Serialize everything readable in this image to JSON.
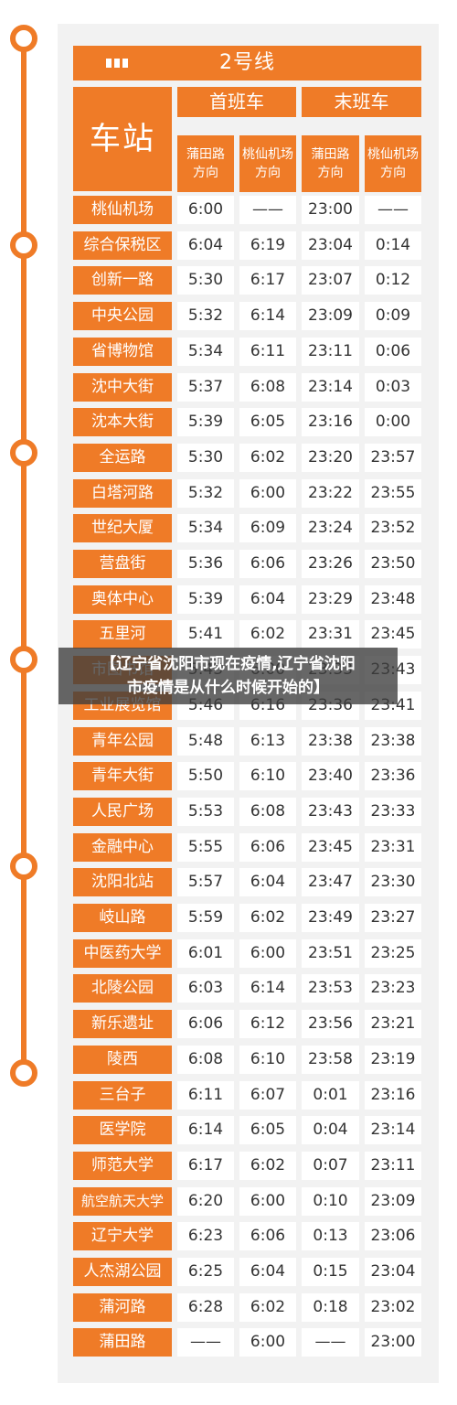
{
  "header": {
    "line_title": "2号线"
  },
  "table": {
    "station_label": "车站",
    "first_train_label": "首班车",
    "last_train_label": "末班车",
    "direction_1": [
      "蒲田路",
      "方向"
    ],
    "direction_2": [
      "桃仙机场",
      "方向"
    ],
    "direction_3": [
      "蒲田路",
      "方向"
    ],
    "direction_4": [
      "桃仙机场",
      "方向"
    ],
    "rows": [
      {
        "station": "桃仙机场",
        "first_putian": "6:00",
        "first_taoxian": "——",
        "last_putian": "23:00",
        "last_taoxian": "——"
      },
      {
        "station": "综合保税区",
        "first_putian": "6:04",
        "first_taoxian": "6:19",
        "last_putian": "23:04",
        "last_taoxian": "0:14"
      },
      {
        "station": "创新一路",
        "first_putian": "5:30",
        "first_taoxian": "6:17",
        "last_putian": "23:07",
        "last_taoxian": "0:12"
      },
      {
        "station": "中央公园",
        "first_putian": "5:32",
        "first_taoxian": "6:14",
        "last_putian": "23:09",
        "last_taoxian": "0:09"
      },
      {
        "station": "省博物馆",
        "first_putian": "5:34",
        "first_taoxian": "6:11",
        "last_putian": "23:11",
        "last_taoxian": "0:06"
      },
      {
        "station": "沈中大街",
        "first_putian": "5:37",
        "first_taoxian": "6:08",
        "last_putian": "23:14",
        "last_taoxian": "0:03"
      },
      {
        "station": "沈本大街",
        "first_putian": "5:39",
        "first_taoxian": "6:05",
        "last_putian": "23:16",
        "last_taoxian": "0:00"
      },
      {
        "station": "全运路",
        "first_putian": "5:30",
        "first_taoxian": "6:02",
        "last_putian": "23:20",
        "last_taoxian": "23:57"
      },
      {
        "station": "白塔河路",
        "first_putian": "5:32",
        "first_taoxian": "6:00",
        "last_putian": "23:22",
        "last_taoxian": "23:55"
      },
      {
        "station": "世纪大厦",
        "first_putian": "5:34",
        "first_taoxian": "6:09",
        "last_putian": "23:24",
        "last_taoxian": "23:52"
      },
      {
        "station": "营盘街",
        "first_putian": "5:36",
        "first_taoxian": "6:06",
        "last_putian": "23:26",
        "last_taoxian": "23:50"
      },
      {
        "station": "奥体中心",
        "first_putian": "5:39",
        "first_taoxian": "6:04",
        "last_putian": "23:29",
        "last_taoxian": "23:48"
      },
      {
        "station": "五里河",
        "first_putian": "5:41",
        "first_taoxian": "6:02",
        "last_putian": "23:31",
        "last_taoxian": "23:45"
      },
      {
        "station": "市图书馆",
        "first_putian": "5:43",
        "first_taoxian": "6:00",
        "last_putian": "23:33",
        "last_taoxian": "23:43"
      },
      {
        "station": "工业展览馆",
        "first_putian": "5:46",
        "first_taoxian": "6:16",
        "last_putian": "23:36",
        "last_taoxian": "23:41"
      },
      {
        "station": "青年公园",
        "first_putian": "5:48",
        "first_taoxian": "6:13",
        "last_putian": "23:38",
        "last_taoxian": "23:38"
      },
      {
        "station": "青年大街",
        "first_putian": "5:50",
        "first_taoxian": "6:10",
        "last_putian": "23:40",
        "last_taoxian": "23:36"
      },
      {
        "station": "人民广场",
        "first_putian": "5:53",
        "first_taoxian": "6:08",
        "last_putian": "23:43",
        "last_taoxian": "23:33"
      },
      {
        "station": "金融中心",
        "first_putian": "5:55",
        "first_taoxian": "6:06",
        "last_putian": "23:45",
        "last_taoxian": "23:31"
      },
      {
        "station": "沈阳北站",
        "first_putian": "5:57",
        "first_taoxian": "6:04",
        "last_putian": "23:47",
        "last_taoxian": "23:30"
      },
      {
        "station": "岐山路",
        "first_putian": "5:59",
        "first_taoxian": "6:02",
        "last_putian": "23:49",
        "last_taoxian": "23:27"
      },
      {
        "station": "中医药大学",
        "first_putian": "6:01",
        "first_taoxian": "6:00",
        "last_putian": "23:51",
        "last_taoxian": "23:25"
      },
      {
        "station": "北陵公园",
        "first_putian": "6:03",
        "first_taoxian": "6:14",
        "last_putian": "23:53",
        "last_taoxian": "23:23"
      },
      {
        "station": "新乐遗址",
        "first_putian": "6:06",
        "first_taoxian": "6:12",
        "last_putian": "23:56",
        "last_taoxian": "23:21"
      },
      {
        "station": "陵西",
        "first_putian": "6:08",
        "first_taoxian": "6:10",
        "last_putian": "23:58",
        "last_taoxian": "23:19"
      },
      {
        "station": "三台子",
        "first_putian": "6:11",
        "first_taoxian": "6:07",
        "last_putian": "0:01",
        "last_taoxian": "23:16"
      },
      {
        "station": "医学院",
        "first_putian": "6:14",
        "first_taoxian": "6:05",
        "last_putian": "0:04",
        "last_taoxian": "23:14"
      },
      {
        "station": "师范大学",
        "first_putian": "6:17",
        "first_taoxian": "6:02",
        "last_putian": "0:07",
        "last_taoxian": "23:11"
      },
      {
        "station": "航空航天大学",
        "first_putian": "6:20",
        "first_taoxian": "6:00",
        "last_putian": "0:10",
        "last_taoxian": "23:09"
      },
      {
        "station": "辽宁大学",
        "first_putian": "6:23",
        "first_taoxian": "6:06",
        "last_putian": "0:13",
        "last_taoxian": "23:06"
      },
      {
        "station": "人杰湖公园",
        "first_putian": "6:25",
        "first_taoxian": "6:04",
        "last_putian": "0:15",
        "last_taoxian": "23:04"
      },
      {
        "station": "蒲河路",
        "first_putian": "6:28",
        "first_taoxian": "6:02",
        "last_putian": "0:18",
        "last_taoxian": "23:02"
      },
      {
        "station": "蒲田路",
        "first_putian": "——",
        "first_taoxian": "6:00",
        "last_putian": "——",
        "last_taoxian": "23:00"
      }
    ]
  },
  "overlay": {
    "line1": "【辽宁省沈阳市现在疫情,辽宁省沈阳",
    "line2": "市疫情是从什么时候开始的】"
  },
  "colors": {
    "accent": "#ef7b27",
    "card_bg": "#f2f2f2",
    "cell_bg": "#ffffff"
  }
}
